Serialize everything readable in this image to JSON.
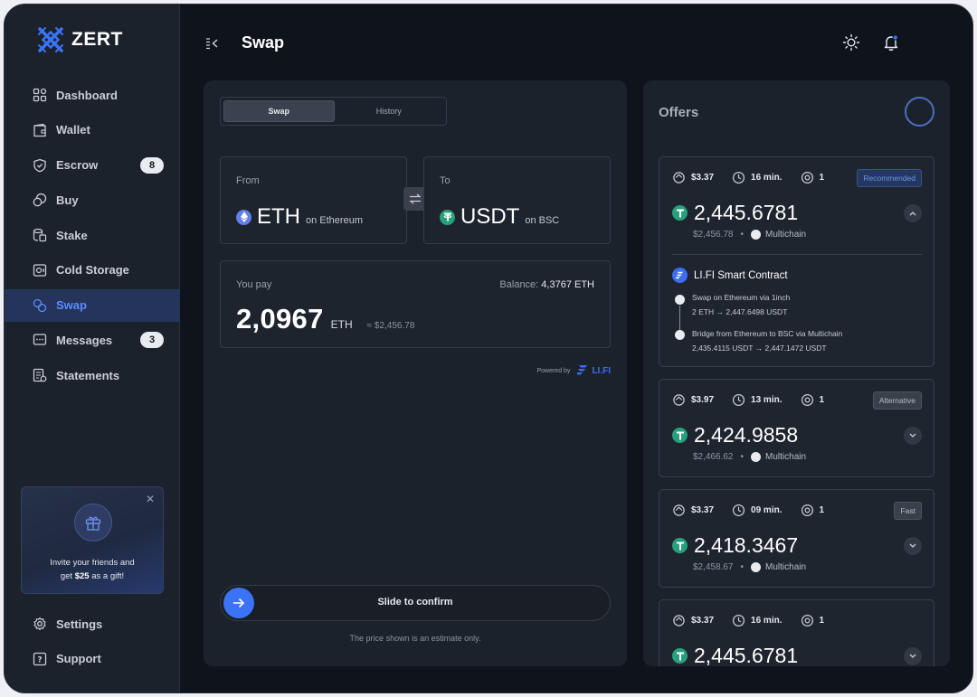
{
  "app": {
    "name": "ZERT"
  },
  "header": {
    "title": "Swap"
  },
  "sidebar": {
    "items": [
      {
        "label": "Dashboard"
      },
      {
        "label": "Wallet"
      },
      {
        "label": "Escrow",
        "badge": "8"
      },
      {
        "label": "Buy"
      },
      {
        "label": "Stake"
      },
      {
        "label": "Cold Storage"
      },
      {
        "label": "Swap"
      },
      {
        "label": "Messages",
        "badge": "3"
      },
      {
        "label": "Statements"
      }
    ],
    "promo": {
      "line1": "Invite your friends and",
      "line2_prefix": "get ",
      "line2_amount": "$25",
      "line2_suffix": " as a gift!"
    },
    "bottom": [
      {
        "label": "Settings"
      },
      {
        "label": "Support"
      }
    ]
  },
  "swap": {
    "tabs": [
      {
        "label": "Swap"
      },
      {
        "label": "History"
      }
    ],
    "from": {
      "label": "From",
      "symbol": "ETH",
      "network": "on Ethereum"
    },
    "to": {
      "label": "To",
      "symbol": "USDT",
      "network": "on BSC"
    },
    "pay": {
      "label": "You pay",
      "balance_label": "Balance:",
      "balance_value": "4,3767 ETH",
      "amount": "2,0967",
      "unit": "ETH",
      "fiat": "≈ $2,456.78"
    },
    "powered_by": "Powered by",
    "provider": "LI.FI",
    "slider_label": "Slide to confirm",
    "estimate_note": "The price shown is an estimate only."
  },
  "offers": {
    "title": "Offers",
    "list": [
      {
        "fee": "$3.37",
        "time": "16 min.",
        "hops": "1",
        "tag": "Recommended",
        "amount": "2,445.6781",
        "fiat": "$2,456.78",
        "bridge": "Multichain",
        "route": {
          "title": "LI.FI Smart Contract",
          "steps": [
            {
              "title": "Swap on Ethereum via 1inch",
              "from": "2 ETH",
              "to": "2,447.6498 USDT"
            },
            {
              "title": "Bridge from Ethereum to BSC via Multichain",
              "from": "2,435.4115 USDT",
              "to": "2,447.1472 USDT"
            }
          ]
        }
      },
      {
        "fee": "$3.97",
        "time": "13 min.",
        "hops": "1",
        "tag": "Alternative",
        "amount": "2,424.9858",
        "fiat": "$2,466.62",
        "bridge": "Multichain"
      },
      {
        "fee": "$3.37",
        "time": "09 min.",
        "hops": "1",
        "tag": "Fast",
        "amount": "2,418.3467",
        "fiat": "$2,458.67",
        "bridge": "Multichain"
      },
      {
        "fee": "$3.37",
        "time": "16 min.",
        "hops": "1",
        "amount": "2,445.6781"
      }
    ]
  },
  "colors": {
    "accent": "#3b73f6",
    "usdt": "#26a17b",
    "eth": "#627eea",
    "bg": "#0f141c",
    "panel": "#1c222c"
  },
  "icons": [
    "zert-logo",
    "dashboard-icon",
    "wallet-icon",
    "shield-icon",
    "buy-icon",
    "stake-icon",
    "cold-storage-icon",
    "swap-icon",
    "messages-icon",
    "statements-icon",
    "settings-icon",
    "support-icon",
    "gift-icon",
    "sun-icon",
    "bell-icon",
    "collapse-icon",
    "arrow-right-icon",
    "chevron-icon",
    "clock-icon",
    "fee-icon",
    "hops-icon"
  ]
}
